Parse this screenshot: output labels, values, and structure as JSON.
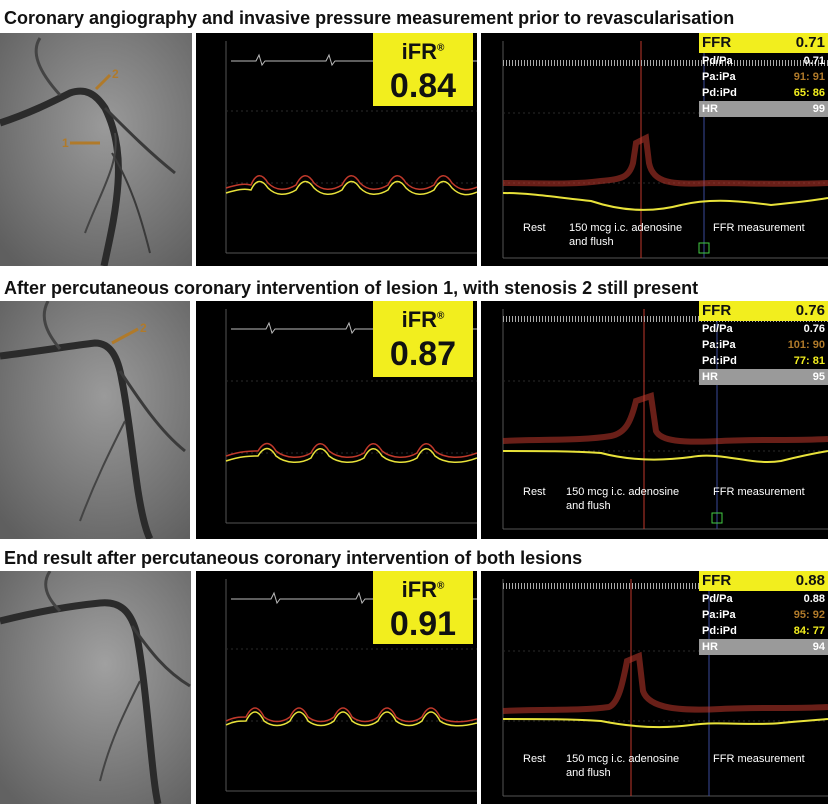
{
  "sections": [
    {
      "heading": "Coronary angiography and invasive pressure measurement prior to revascularisation",
      "ifr_label": "iFR",
      "ifr_sup": "®",
      "ifr_value": "0.84",
      "ffr_label": "FFR",
      "ffr_value": "0.71",
      "pdpa_label": "Pd/Pa",
      "pdpa_value": "0.71",
      "paipa_label": "Pa:iPa",
      "paipa_value": "91: 91",
      "pdipd_label": "Pd:iPd",
      "pdipd_value": "65: 86",
      "hr_label": "HR",
      "hr_value": "99",
      "rest_label": "Rest",
      "adenosine_label": "150 mcg i.c. adenosine",
      "flush_label": "and flush",
      "ffr_measurement_label": "FFR measurement",
      "lesion_labels": [
        "2",
        "1"
      ]
    },
    {
      "heading": "After percutaneous coronary intervention of lesion 1, with stenosis 2 still present",
      "ifr_label": "iFR",
      "ifr_sup": "®",
      "ifr_value": "0.87",
      "ffr_label": "FFR",
      "ffr_value": "0.76",
      "pdpa_label": "Pd/Pa",
      "pdpa_value": "0.76",
      "paipa_label": "Pa:iPa",
      "paipa_value": "101: 90",
      "pdipd_label": "Pd:iPd",
      "pdipd_value": "77: 81",
      "hr_label": "HR",
      "hr_value": "95",
      "rest_label": "Rest",
      "adenosine_label": "150 mcg i.c. adenosine",
      "flush_label": "and flush",
      "ffr_measurement_label": "FFR measurement",
      "lesion_labels": [
        "2"
      ]
    },
    {
      "heading": "End result after percutaneous coronary intervention of both lesions",
      "ifr_label": "iFR",
      "ifr_sup": "®",
      "ifr_value": "0.91",
      "ffr_label": "FFR",
      "ffr_value": "0.88",
      "pdpa_label": "Pd/Pa",
      "pdpa_value": "0.88",
      "paipa_label": "Pa:iPa",
      "paipa_value": "95: 92",
      "pdipd_label": "Pd:iPd",
      "pdipd_value": "84: 77",
      "hr_label": "HR",
      "hr_value": "94",
      "rest_label": "Rest",
      "adenosine_label": "150 mcg i.c. adenosine",
      "flush_label": "and flush",
      "ffr_measurement_label": "FFR measurement",
      "lesion_labels": []
    }
  ],
  "colors": {
    "yellow_box": "#f2ee1e",
    "pa_trace": "#c0392b",
    "pd_trace": "#e8e23a",
    "grid": "#2a2a2a"
  }
}
